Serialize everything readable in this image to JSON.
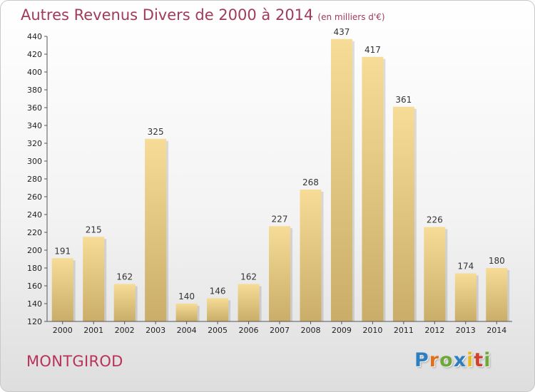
{
  "chart_data": {
    "type": "bar",
    "title": "Autres Revenus Divers de 2000 à 2014",
    "subtitle": "(en milliers d'€)",
    "categories": [
      "2000",
      "2001",
      "2002",
      "2003",
      "2004",
      "2005",
      "2006",
      "2007",
      "2008",
      "2009",
      "2010",
      "2011",
      "2012",
      "2013",
      "2014"
    ],
    "values": [
      191,
      215,
      162,
      325,
      140,
      146,
      162,
      227,
      268,
      437,
      417,
      361,
      226,
      174,
      180
    ],
    "ylim": [
      120,
      440
    ],
    "yticks": [
      120,
      140,
      160,
      180,
      200,
      220,
      240,
      260,
      280,
      300,
      320,
      340,
      360,
      380,
      400,
      420,
      440
    ],
    "grid": false,
    "legend": "none",
    "bar_color_top": "#f6dc96",
    "bar_color_bottom": "#c9ad68"
  },
  "footer": {
    "commune": "MONTGIROD",
    "brand": {
      "letters": [
        "P",
        "r",
        "o",
        "x",
        "i",
        "t",
        "i"
      ],
      "colors": [
        "#2e7fc2",
        "#e0701e",
        "#6ea83a",
        "#2e7fc2",
        "#e8b81e",
        "#d2402e",
        "#6ea83a"
      ]
    }
  }
}
